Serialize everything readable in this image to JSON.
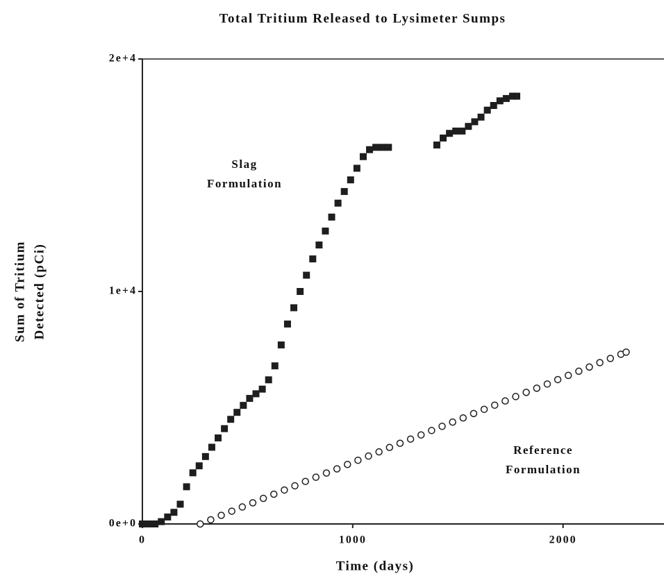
{
  "chart_data": {
    "type": "scatter",
    "title": "Total Tritium Released to Lysimeter Sumps",
    "x_label": "Time (days)",
    "y_label": [
      "Sum of Tritium",
      "Detected (pCi)"
    ],
    "xlim": [
      0,
      2480
    ],
    "ylim": [
      0,
      20000
    ],
    "xticks": [
      0,
      1000,
      2000
    ],
    "yticks": [
      {
        "value": 0,
        "label": "0e+0"
      },
      {
        "value": 10000,
        "label": "1e+4"
      },
      {
        "value": 20000,
        "label": "2e+4"
      }
    ],
    "series": [
      {
        "marker": "square",
        "color": "#1e1e1e",
        "x": [
          0,
          30,
          60,
          90,
          120,
          150,
          180,
          210,
          240,
          270,
          300,
          330,
          360,
          390,
          420,
          450,
          480,
          510,
          540,
          570,
          600,
          630,
          660,
          690,
          720,
          750,
          780,
          810,
          840,
          870,
          900,
          930,
          960,
          990,
          1020,
          1050,
          1080,
          1110,
          1140,
          1170,
          1400,
          1430,
          1460,
          1490,
          1520,
          1550,
          1580,
          1610,
          1640,
          1670,
          1700,
          1730,
          1760,
          1780
        ],
        "values": [
          0,
          0,
          0,
          100,
          300,
          500,
          850,
          1600,
          2200,
          2500,
          2900,
          3300,
          3700,
          4100,
          4500,
          4800,
          5100,
          5400,
          5600,
          5800,
          6200,
          6800,
          7700,
          8600,
          9300,
          10000,
          10700,
          11400,
          12000,
          12600,
          13200,
          13800,
          14300,
          14800,
          15300,
          15800,
          16100,
          16200,
          16200,
          16200,
          16300,
          16600,
          16800,
          16900,
          16900,
          17100,
          17300,
          17500,
          17800,
          18000,
          18200,
          18300,
          18400,
          18400
        ]
      },
      {
        "marker": "circle",
        "color": "#1e1e1e",
        "x": [
          275,
          325,
          375,
          425,
          475,
          525,
          575,
          625,
          675,
          725,
          775,
          825,
          875,
          925,
          975,
          1025,
          1075,
          1125,
          1175,
          1225,
          1275,
          1325,
          1375,
          1425,
          1475,
          1525,
          1575,
          1625,
          1675,
          1725,
          1775,
          1825,
          1875,
          1925,
          1975,
          2025,
          2075,
          2125,
          2175,
          2225,
          2275,
          2300
        ],
        "values": [
          0,
          180,
          370,
          550,
          730,
          910,
          1100,
          1280,
          1460,
          1640,
          1830,
          2010,
          2190,
          2370,
          2560,
          2740,
          2920,
          3100,
          3290,
          3470,
          3650,
          3830,
          4020,
          4200,
          4380,
          4560,
          4750,
          4930,
          5110,
          5290,
          5480,
          5660,
          5840,
          6020,
          6210,
          6390,
          6570,
          6750,
          6940,
          7120,
          7300,
          7390
        ]
      }
    ],
    "annotations": [
      {
        "lines": [
          "Slag",
          "Formulation"
        ]
      },
      {
        "lines": [
          "Reference",
          "Formulation"
        ]
      }
    ]
  }
}
